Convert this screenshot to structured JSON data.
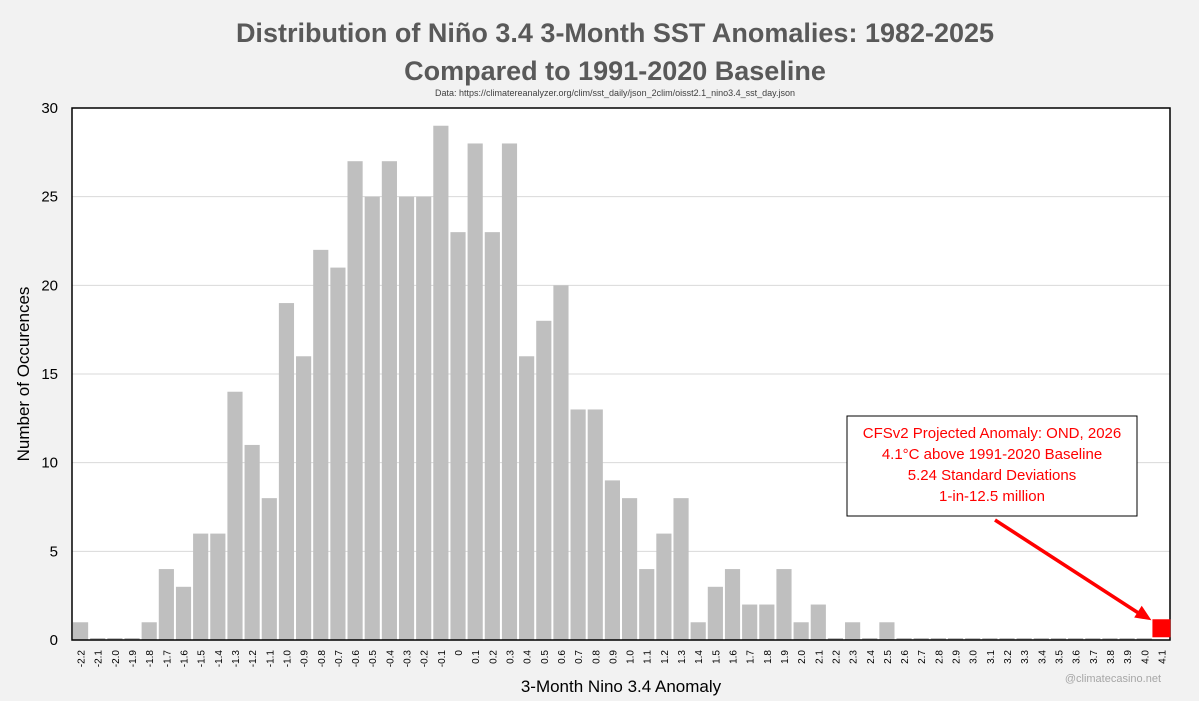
{
  "title_line1": "Distribution of Niño 3.4 3-Month SST Anomalies: 1982-2025",
  "title_line2": "Compared to 1991-2020 Baseline",
  "source": "Data: https://climatereanalyzer.org/clim/sst_daily/json_2clim/oisst2.1_nino3.4_sst_day.json",
  "watermark": "@climatecasino.net",
  "colors": {
    "bar": "#bfbfbf",
    "highlight": "#ff0000",
    "annotation_text": "#ff0000",
    "arrow": "#ff0000"
  },
  "annotation": {
    "lines": [
      "CFSv2 Projected Anomaly: OND, 2026",
      "4.1°C above 1991-2020 Baseline",
      "5.24 Standard Deviations",
      "1-in-12.5 million"
    ]
  },
  "chart_data": {
    "type": "bar",
    "xlabel": "3-Month Nino 3.4 Anomaly",
    "ylabel": "Number of Occurences",
    "ylim": [
      0,
      30
    ],
    "yticks": [
      0,
      5,
      10,
      15,
      20,
      25,
      30
    ],
    "grid": true,
    "categories": [
      "-2.2",
      "-2.1",
      "-2.0",
      "-1.9",
      "-1.8",
      "-1.7",
      "-1.6",
      "-1.5",
      "-1.4",
      "-1.3",
      "-1.2",
      "-1.1",
      "-1.0",
      "-0.9",
      "-0.8",
      "-0.7",
      "-0.6",
      "-0.5",
      "-0.4",
      "-0.3",
      "-0.2",
      "-0.1",
      "0",
      "0.1",
      "0.2",
      "0.3",
      "0.4",
      "0.5",
      "0.6",
      "0.7",
      "0.8",
      "0.9",
      "1.0",
      "1.1",
      "1.2",
      "1.3",
      "1.4",
      "1.5",
      "1.6",
      "1.7",
      "1.8",
      "1.9",
      "2.0",
      "2.1",
      "2.2",
      "2.3",
      "2.4",
      "2.5",
      "2.6",
      "2.7",
      "2.8",
      "2.9",
      "3.0",
      "3.1",
      "3.2",
      "3.3",
      "3.4",
      "3.5",
      "3.6",
      "3.7",
      "3.8",
      "3.9",
      "4.0",
      "4.1"
    ],
    "values": [
      1,
      0,
      0,
      0,
      1,
      4,
      3,
      6,
      6,
      14,
      11,
      8,
      19,
      16,
      22,
      21,
      27,
      25,
      27,
      25,
      25,
      29,
      23,
      28,
      23,
      28,
      16,
      18,
      20,
      13,
      13,
      9,
      8,
      4,
      6,
      8,
      1,
      3,
      4,
      2,
      2,
      4,
      1,
      2,
      0,
      1,
      0,
      1,
      0,
      0,
      0,
      0,
      0,
      0,
      0,
      0,
      0,
      0,
      0,
      0,
      0,
      0,
      0,
      0
    ],
    "highlight": {
      "category": "4.1",
      "value": 1,
      "marker": "square"
    }
  }
}
